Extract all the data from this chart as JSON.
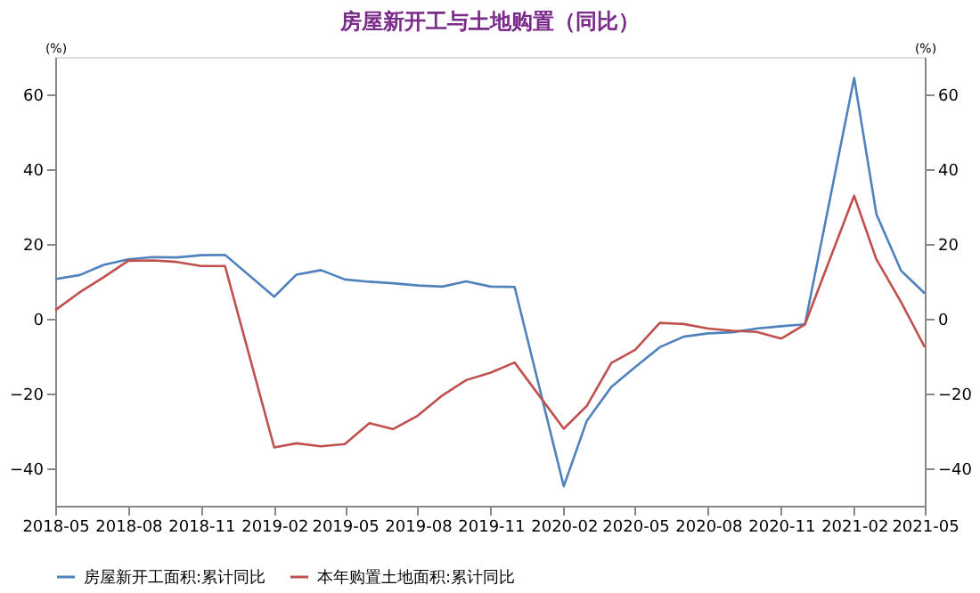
{
  "chart_data": {
    "type": "line",
    "title": "房屋新开工与土地购置（同比）",
    "ylabel": "(%)",
    "y2label": "(%)",
    "x": [
      "2018-05",
      "2018-06",
      "2018-07",
      "2018-08",
      "2018-09",
      "2018-10",
      "2018-11",
      "2018-12",
      "2019-02",
      "2019-03",
      "2019-04",
      "2019-05",
      "2019-06",
      "2019-07",
      "2019-08",
      "2019-09",
      "2019-10",
      "2019-11",
      "2019-12",
      "2020-02",
      "2020-03",
      "2020-04",
      "2020-05",
      "2020-06",
      "2020-07",
      "2020-08",
      "2020-09",
      "2020-10",
      "2020-11",
      "2020-12",
      "2021-02",
      "2021-03",
      "2021-04",
      "2021-05"
    ],
    "series": [
      {
        "name": "房屋新开工面积:累计同比",
        "color": "#4f81bd",
        "values": [
          10.6,
          11.7,
          14.4,
          15.9,
          16.5,
          16.4,
          17.0,
          17.1,
          5.9,
          11.8,
          13.0,
          10.5,
          9.9,
          9.5,
          8.9,
          8.6,
          10.0,
          8.6,
          8.5,
          -44.8,
          -27.3,
          -18.2,
          -12.9,
          -7.6,
          -4.8,
          -3.9,
          -3.6,
          -2.6,
          -2.0,
          -1.5,
          64.4,
          28.0,
          12.9,
          6.8
        ]
      },
      {
        "name": "本年购置土地面积:累计同比",
        "color": "#c0504d",
        "values": [
          2.3,
          7.1,
          11.1,
          15.5,
          15.6,
          15.2,
          14.1,
          14.1,
          -34.4,
          -33.3,
          -34.1,
          -33.5,
          -27.9,
          -29.5,
          -25.9,
          -20.5,
          -16.4,
          -14.4,
          -11.7,
          -29.4,
          -23.3,
          -11.8,
          -8.3,
          -1.1,
          -1.4,
          -2.6,
          -3.2,
          -3.5,
          -5.3,
          -1.5,
          32.9,
          15.9,
          4.5,
          -7.6
        ]
      }
    ],
    "xlim": [
      "2018-05",
      "2021-05"
    ],
    "xticks": [
      "2018-05",
      "2018-08",
      "2018-11",
      "2019-02",
      "2019-05",
      "2019-08",
      "2019-11",
      "2020-02",
      "2020-05",
      "2020-08",
      "2020-11",
      "2021-02",
      "2021-05"
    ],
    "ylim": [
      -50,
      70
    ],
    "yticks": [
      -40,
      -20,
      0,
      20,
      40,
      60
    ],
    "y2lim": [
      -50,
      70
    ],
    "y2ticks": [
      -40,
      -20,
      0,
      20,
      40,
      60
    ],
    "legend": "bottom",
    "grid": false,
    "marker": "none",
    "line_style": "solid"
  }
}
